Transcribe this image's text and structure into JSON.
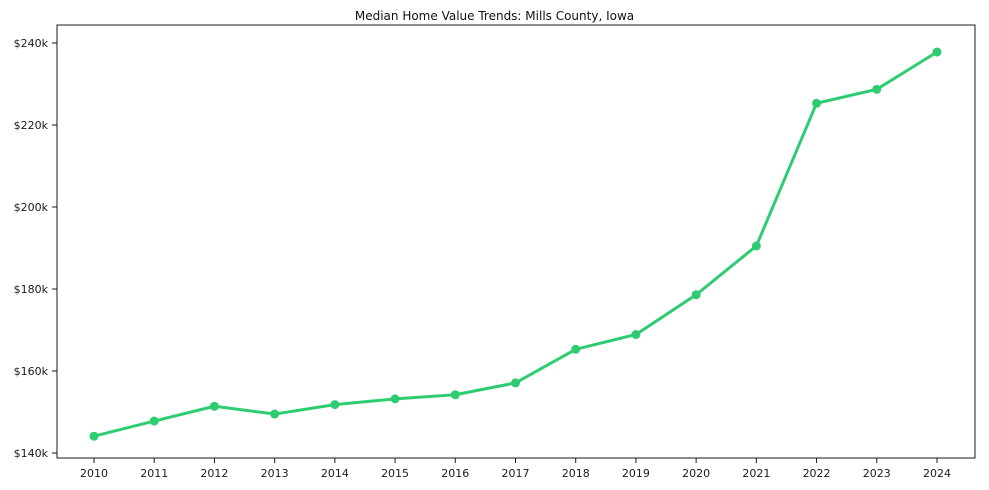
{
  "figure": {
    "title": "Median Home Value Trends: Mills County, Iowa"
  },
  "chart_data": {
    "type": "line",
    "title": "Median Home Value Trends: Mills County, Iowa",
    "x": [
      2010,
      2011,
      2012,
      2013,
      2014,
      2015,
      2016,
      2017,
      2018,
      2019,
      2020,
      2021,
      2022,
      2023,
      2024
    ],
    "series": [
      {
        "name": "Median Home Value",
        "values": [
          144100,
          147800,
          151400,
          149500,
          151800,
          153200,
          154200,
          157100,
          165300,
          168900,
          178600,
          190500,
          225300,
          228700,
          237800
        ]
      }
    ],
    "xlabel": "",
    "ylabel": "",
    "ylim": [
      140000,
      240000
    ],
    "yticks": [
      140000,
      160000,
      180000,
      200000,
      220000,
      240000
    ],
    "ytick_labels": [
      "$140k",
      "$160k",
      "$180k",
      "$200k",
      "$220k",
      "$240k"
    ],
    "xtick_labels": [
      "2010",
      "2011",
      "2012",
      "2013",
      "2014",
      "2015",
      "2016",
      "2017",
      "2018",
      "2019",
      "2020",
      "2021",
      "2022",
      "2023",
      "2024"
    ],
    "grid": false,
    "legend": null,
    "line_color": "#2ecc71",
    "axis_color": "#1a1a1a",
    "marker": "circle"
  }
}
